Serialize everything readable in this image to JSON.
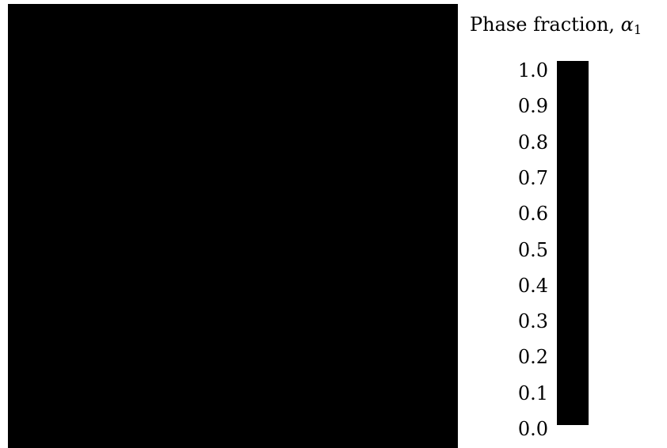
{
  "chart_data": {
    "type": "heatmap",
    "colorbar": {
      "title": "Phase fraction, ",
      "title_symbol": "α",
      "title_subscript": "1",
      "range": [
        0.0,
        1.0
      ],
      "ticks": [
        "1.0",
        "0.9",
        "0.8",
        "0.7",
        "0.6",
        "0.5",
        "0.4",
        "0.3",
        "0.2",
        "0.1",
        "0.0"
      ],
      "colormap": [
        "#000000",
        "#000000"
      ]
    },
    "field_color": "#000000"
  }
}
